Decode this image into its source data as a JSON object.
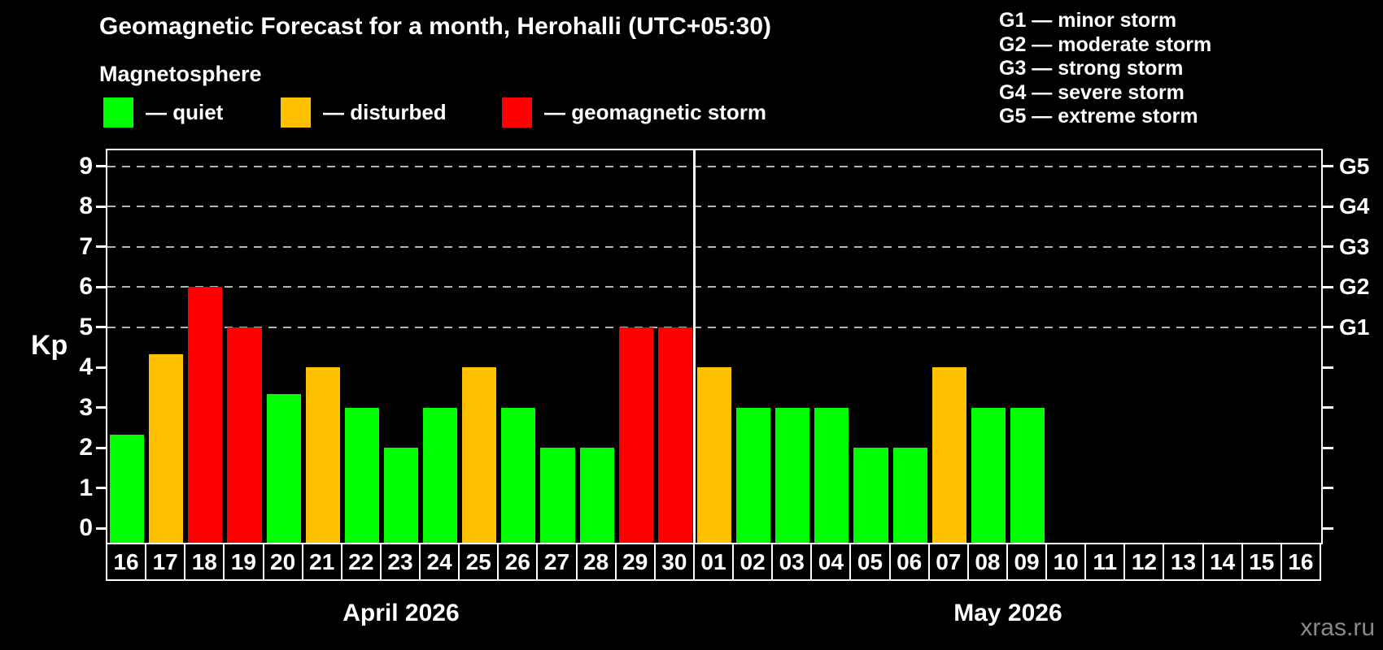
{
  "header": {
    "title": "Geomagnetic Forecast for a month, Herohalli (UTC+05:30)",
    "subtitle": "Magnetosphere",
    "legend": [
      {
        "key": "quiet",
        "label": "— quiet"
      },
      {
        "key": "disturbed",
        "label": "— disturbed"
      },
      {
        "key": "storm",
        "label": "— geomagnetic storm"
      }
    ],
    "g_legend": [
      "G1 — minor storm",
      "G2 — moderate storm",
      "G3 — strong storm",
      "G4 — severe storm",
      "G5 — extreme storm"
    ]
  },
  "watermark": "xras.ru",
  "chart_data": {
    "type": "bar",
    "title": "Geomagnetic Forecast for a month, Herohalli (UTC+05:30)",
    "ylabel": "Kp",
    "ylim": [
      0,
      9
    ],
    "yticks": [
      0,
      1,
      2,
      3,
      4,
      5,
      6,
      7,
      8,
      9
    ],
    "gridlines_at_kp": [
      5,
      6,
      7,
      8,
      9
    ],
    "grid": "dashed, at G-storm levels only",
    "legend_position": "top",
    "right_axis": [
      {
        "kp": 5,
        "label": "G1"
      },
      {
        "kp": 6,
        "label": "G2"
      },
      {
        "kp": 7,
        "label": "G3"
      },
      {
        "kp": 8,
        "label": "G4"
      },
      {
        "kp": 9,
        "label": "G5"
      }
    ],
    "status_colors": {
      "quiet": "#00ff00",
      "disturbed": "#ffc000",
      "storm": "#ff0000"
    },
    "months": [
      {
        "label": "April 2026",
        "days": [
          {
            "date": "16",
            "kp": 2.33,
            "status": "quiet"
          },
          {
            "date": "17",
            "kp": 4.33,
            "status": "disturbed"
          },
          {
            "date": "18",
            "kp": 6,
            "status": "storm"
          },
          {
            "date": "19",
            "kp": 5,
            "status": "storm"
          },
          {
            "date": "20",
            "kp": 3.33,
            "status": "quiet"
          },
          {
            "date": "21",
            "kp": 4,
            "status": "disturbed"
          },
          {
            "date": "22",
            "kp": 3,
            "status": "quiet"
          },
          {
            "date": "23",
            "kp": 2,
            "status": "quiet"
          },
          {
            "date": "24",
            "kp": 3,
            "status": "quiet"
          },
          {
            "date": "25",
            "kp": 4,
            "status": "disturbed"
          },
          {
            "date": "26",
            "kp": 3,
            "status": "quiet"
          },
          {
            "date": "27",
            "kp": 2,
            "status": "quiet"
          },
          {
            "date": "28",
            "kp": 2,
            "status": "quiet"
          },
          {
            "date": "29",
            "kp": 5,
            "status": "storm"
          },
          {
            "date": "30",
            "kp": 5,
            "status": "storm"
          }
        ]
      },
      {
        "label": "May 2026",
        "days": [
          {
            "date": "01",
            "kp": 4,
            "status": "disturbed"
          },
          {
            "date": "02",
            "kp": 3,
            "status": "quiet"
          },
          {
            "date": "03",
            "kp": 3,
            "status": "quiet"
          },
          {
            "date": "04",
            "kp": 3,
            "status": "quiet"
          },
          {
            "date": "05",
            "kp": 2,
            "status": "quiet"
          },
          {
            "date": "06",
            "kp": 2,
            "status": "quiet"
          },
          {
            "date": "07",
            "kp": 4,
            "status": "disturbed"
          },
          {
            "date": "08",
            "kp": 3,
            "status": "quiet"
          },
          {
            "date": "09",
            "kp": 3,
            "status": "quiet"
          },
          {
            "date": "10",
            "kp": null,
            "status": null
          },
          {
            "date": "11",
            "kp": null,
            "status": null
          },
          {
            "date": "12",
            "kp": null,
            "status": null
          },
          {
            "date": "13",
            "kp": null,
            "status": null
          },
          {
            "date": "14",
            "kp": null,
            "status": null
          },
          {
            "date": "15",
            "kp": null,
            "status": null
          },
          {
            "date": "16",
            "kp": null,
            "status": null
          }
        ]
      }
    ]
  }
}
